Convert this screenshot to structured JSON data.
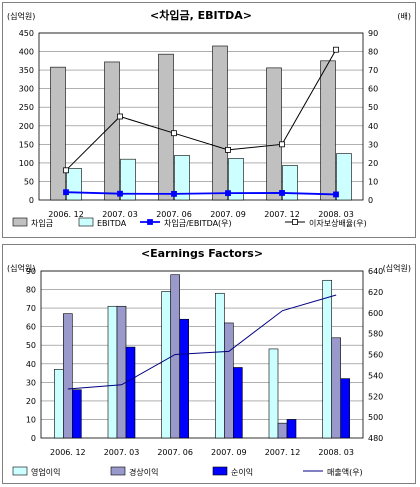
{
  "chart_data": [
    {
      "type": "bar",
      "title": "<차입금, EBITDA>",
      "left_unit": "(십억원)",
      "right_unit": "(배)",
      "categories": [
        "2006. 12",
        "2007. 03",
        "2007. 06",
        "2007. 09",
        "2007. 12",
        "2008. 03"
      ],
      "ylim_left": [
        0,
        450
      ],
      "yticks_left": [
        0,
        50,
        100,
        150,
        200,
        250,
        300,
        350,
        400,
        450
      ],
      "ylim_right": [
        0,
        90
      ],
      "yticks_right": [
        0,
        10,
        20,
        30,
        40,
        50,
        60,
        70,
        80,
        90
      ],
      "series": [
        {
          "name": "차입금",
          "kind": "bar",
          "axis": "left",
          "color": "#c0c0c0",
          "values": [
            358,
            372,
            393,
            415,
            356,
            375
          ]
        },
        {
          "name": "EBITDA",
          "kind": "bar",
          "axis": "left",
          "color": "#ccffff",
          "values": [
            85,
            110,
            120,
            112,
            93,
            125
          ]
        },
        {
          "name": "차입금/EBITDA(우)",
          "kind": "line",
          "axis": "right",
          "color": "#0000ff",
          "marker": "square",
          "values": [
            4.2,
            3.4,
            3.3,
            3.7,
            3.8,
            3.0
          ]
        },
        {
          "name": "이자보상배율(우)",
          "kind": "line",
          "axis": "right",
          "color": "#000000",
          "marker": "open-square",
          "values": [
            16,
            45,
            36,
            27,
            30,
            81
          ]
        }
      ],
      "grid": true,
      "legend": "bottom"
    },
    {
      "type": "bar",
      "title": "<Earnings Factors>",
      "left_unit": "(십억원)",
      "right_unit": "(십억원)",
      "categories": [
        "2006. 12",
        "2007. 03",
        "2007. 06",
        "2007. 09",
        "2007. 12",
        "2008. 03"
      ],
      "ylim_left": [
        0,
        90
      ],
      "yticks_left": [
        0,
        10,
        20,
        30,
        40,
        50,
        60,
        70,
        80,
        90
      ],
      "ylim_right": [
        480,
        640
      ],
      "yticks_right": [
        480,
        500,
        520,
        540,
        560,
        580,
        600,
        620,
        640
      ],
      "series": [
        {
          "name": "영업이익",
          "kind": "bar",
          "axis": "left",
          "color": "#ccffff",
          "values": [
            37,
            71,
            79,
            78,
            48,
            85
          ]
        },
        {
          "name": "경상이익",
          "kind": "bar",
          "axis": "left",
          "color": "#9999cc",
          "values": [
            67,
            71,
            88,
            62,
            8,
            54
          ]
        },
        {
          "name": "순이익",
          "kind": "bar",
          "axis": "left",
          "color": "#0000ff",
          "values": [
            26,
            49,
            64,
            38,
            10,
            32
          ]
        },
        {
          "name": "매출액(우)",
          "kind": "line",
          "axis": "right",
          "color": "#000080",
          "values": [
            527,
            531,
            560,
            563,
            602,
            617
          ]
        }
      ],
      "grid": true,
      "legend": "bottom"
    }
  ]
}
